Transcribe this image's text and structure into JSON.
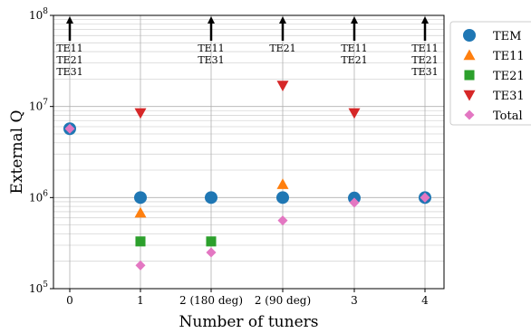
{
  "chart_data": {
    "type": "scatter",
    "title": "",
    "xlabel": "Number of tuners",
    "ylabel": "External Q",
    "yscale": "log",
    "ylim": [
      100000,
      100000000
    ],
    "y_tick_labels": [
      "10^5",
      "10^6",
      "10^7",
      "10^8"
    ],
    "categories": [
      "0",
      "1",
      "2 (180 deg)",
      "2 (90 deg)",
      "3",
      "4"
    ],
    "grid": true,
    "legend_position": "right, outside plot area",
    "series": [
      {
        "name": "TEM",
        "marker": "circle",
        "color": "#1f77b4",
        "values": [
          5700000,
          1000000,
          1000000,
          1000000,
          990000,
          1000000
        ]
      },
      {
        "name": "TE11",
        "marker": "triangle-up",
        "color": "#ff7f0e",
        "values": [
          null,
          680000,
          null,
          1400000,
          null,
          null
        ]
      },
      {
        "name": "TE21",
        "marker": "square",
        "color": "#2ca02c",
        "values": [
          null,
          330000,
          330000,
          null,
          null,
          null
        ]
      },
      {
        "name": "TE31",
        "marker": "triangle-down",
        "color": "#d62728",
        "values": [
          null,
          8500000,
          null,
          17000000,
          8500000,
          null
        ]
      },
      {
        "name": "Total",
        "marker": "diamond",
        "color": "#e377c2",
        "values": [
          5700000,
          180000,
          250000,
          560000,
          880000,
          1000000
        ]
      }
    ],
    "annotations": [
      {
        "category": "0",
        "direction": "up-arrow",
        "lines": [
          "TE11",
          "TE21",
          "TE31"
        ]
      },
      {
        "category": "2 (180 deg)",
        "direction": "up-arrow",
        "lines": [
          "TE11",
          "TE31"
        ]
      },
      {
        "category": "2 (90 deg)",
        "direction": "up-arrow",
        "lines": [
          "TE21"
        ]
      },
      {
        "category": "3",
        "direction": "up-arrow",
        "lines": [
          "TE11",
          "TE21"
        ]
      },
      {
        "category": "4",
        "direction": "up-arrow",
        "lines": [
          "TE11",
          "TE21",
          "TE31"
        ]
      }
    ]
  }
}
